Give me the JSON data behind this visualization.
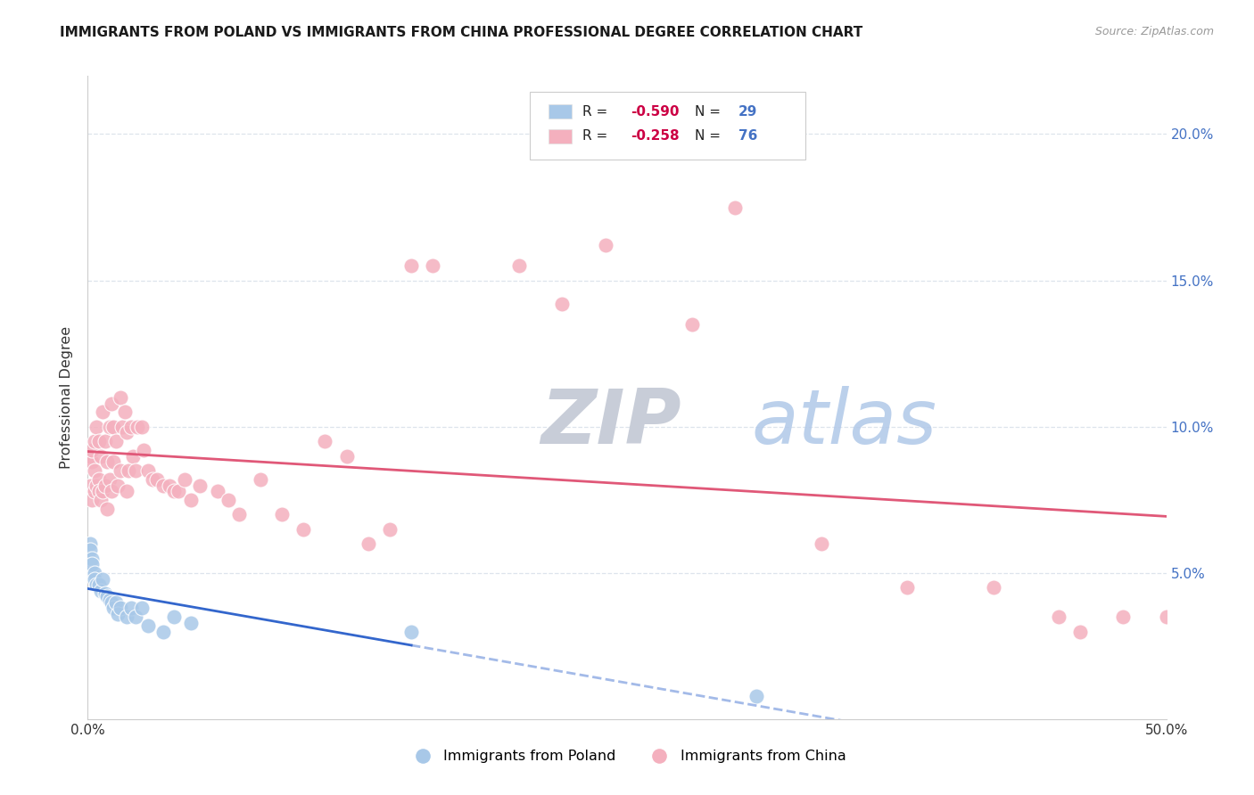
{
  "title": "IMMIGRANTS FROM POLAND VS IMMIGRANTS FROM CHINA PROFESSIONAL DEGREE CORRELATION CHART",
  "source": "Source: ZipAtlas.com",
  "ylabel": "Professional Degree",
  "xlim": [
    0.0,
    0.5
  ],
  "ylim": [
    0.0,
    0.22
  ],
  "yticks": [
    0.05,
    0.1,
    0.15,
    0.2
  ],
  "ytick_labels": [
    "5.0%",
    "10.0%",
    "15.0%",
    "20.0%"
  ],
  "legend_r_n": [
    {
      "R": "-0.590",
      "N": "29",
      "color": "#a8c8e8"
    },
    {
      "R": "-0.258",
      "N": "76",
      "color": "#f4b0be"
    }
  ],
  "legend_labels": [
    "Immigrants from Poland",
    "Immigrants from China"
  ],
  "background_color": "#ffffff",
  "grid_color": "#dde4ec",
  "title_color": "#1a1a1a",
  "right_tick_color": "#4472c4",
  "poland_scatter_color": "#a8c8e8",
  "china_scatter_color": "#f4b0be",
  "poland_line_color": "#3366cc",
  "china_line_color": "#e05878",
  "r_text_color": "#cc0044",
  "n_text_color": "#4472c4",
  "poland_x": [
    0.001,
    0.001,
    0.002,
    0.002,
    0.002,
    0.003,
    0.003,
    0.004,
    0.005,
    0.006,
    0.007,
    0.008,
    0.009,
    0.01,
    0.011,
    0.012,
    0.013,
    0.014,
    0.015,
    0.018,
    0.02,
    0.022,
    0.025,
    0.028,
    0.035,
    0.04,
    0.048,
    0.15,
    0.31
  ],
  "poland_y": [
    0.06,
    0.058,
    0.055,
    0.05,
    0.053,
    0.05,
    0.048,
    0.046,
    0.046,
    0.044,
    0.048,
    0.043,
    0.042,
    0.041,
    0.04,
    0.038,
    0.04,
    0.036,
    0.038,
    0.035,
    0.038,
    0.035,
    0.038,
    0.032,
    0.03,
    0.035,
    0.033,
    0.03,
    0.008
  ],
  "china_x": [
    0.001,
    0.001,
    0.002,
    0.002,
    0.002,
    0.003,
    0.003,
    0.003,
    0.004,
    0.004,
    0.005,
    0.005,
    0.005,
    0.006,
    0.006,
    0.007,
    0.007,
    0.008,
    0.008,
    0.009,
    0.009,
    0.01,
    0.01,
    0.011,
    0.011,
    0.012,
    0.012,
    0.013,
    0.014,
    0.015,
    0.015,
    0.016,
    0.017,
    0.018,
    0.018,
    0.019,
    0.02,
    0.021,
    0.022,
    0.023,
    0.025,
    0.026,
    0.028,
    0.03,
    0.032,
    0.035,
    0.038,
    0.04,
    0.042,
    0.045,
    0.048,
    0.052,
    0.06,
    0.065,
    0.07,
    0.08,
    0.09,
    0.1,
    0.11,
    0.12,
    0.13,
    0.14,
    0.15,
    0.16,
    0.2,
    0.22,
    0.24,
    0.28,
    0.3,
    0.34,
    0.38,
    0.42,
    0.45,
    0.46,
    0.48,
    0.5
  ],
  "china_y": [
    0.09,
    0.08,
    0.088,
    0.092,
    0.075,
    0.095,
    0.085,
    0.078,
    0.1,
    0.08,
    0.095,
    0.082,
    0.078,
    0.09,
    0.075,
    0.105,
    0.078,
    0.095,
    0.08,
    0.088,
    0.072,
    0.1,
    0.082,
    0.108,
    0.078,
    0.1,
    0.088,
    0.095,
    0.08,
    0.11,
    0.085,
    0.1,
    0.105,
    0.098,
    0.078,
    0.085,
    0.1,
    0.09,
    0.085,
    0.1,
    0.1,
    0.092,
    0.085,
    0.082,
    0.082,
    0.08,
    0.08,
    0.078,
    0.078,
    0.082,
    0.075,
    0.08,
    0.078,
    0.075,
    0.07,
    0.082,
    0.07,
    0.065,
    0.095,
    0.09,
    0.06,
    0.065,
    0.155,
    0.155,
    0.155,
    0.142,
    0.162,
    0.135,
    0.175,
    0.06,
    0.045,
    0.045,
    0.035,
    0.03,
    0.035,
    0.035
  ]
}
